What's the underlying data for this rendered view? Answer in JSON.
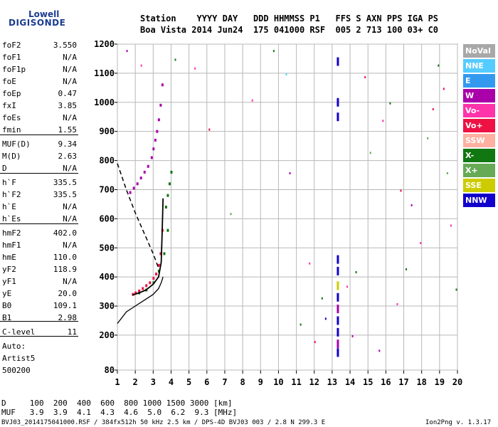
{
  "logo": {
    "line1": "Lowell",
    "line2": "DIGISONDE"
  },
  "header": {
    "row1": "Station    YYYY DAY   DDD HHMMSS P1   FFS S AXN PPS IGA PS",
    "row2": "Boa Vista 2014 Jun24  175 041000 RSF  005 2 713 100 03+ C0"
  },
  "params": [
    {
      "name": "foF2",
      "value": "3.550"
    },
    {
      "name": "foF1",
      "value": "N/A"
    },
    {
      "name": "foF1p",
      "value": "N/A"
    },
    {
      "name": "foE",
      "value": "N/A"
    },
    {
      "name": "foEp",
      "value": "0.47"
    },
    {
      "name": "fxI",
      "value": "3.85"
    },
    {
      "name": "foEs",
      "value": "N/A"
    },
    {
      "name": "fmin",
      "value": "1.55"
    },
    {
      "name": "MUF(D)",
      "value": "9.34"
    },
    {
      "name": "M(D)",
      "value": "2.63"
    },
    {
      "name": "D",
      "value": "N/A"
    },
    {
      "name": "h`F",
      "value": "335.5"
    },
    {
      "name": "h`F2",
      "value": "335.5"
    },
    {
      "name": "h`E",
      "value": "N/A"
    },
    {
      "name": "h`Es",
      "value": "N/A"
    },
    {
      "name": "hmF2",
      "value": "402.0"
    },
    {
      "name": "hmF1",
      "value": "N/A"
    },
    {
      "name": "hmE",
      "value": "110.0"
    },
    {
      "name": "yF2",
      "value": "118.9"
    },
    {
      "name": "yF1",
      "value": "N/A"
    },
    {
      "name": "yE",
      "value": "20.0"
    },
    {
      "name": "B0",
      "value": "109.1"
    },
    {
      "name": "B1",
      "value": "2.98"
    },
    {
      "name": "C-level",
      "value": "11"
    }
  ],
  "auto": {
    "line1": "Auto:",
    "line2": "Artist5",
    "line3": "500200"
  },
  "legend": [
    {
      "label": "NoVal",
      "color": "#a8a8a8"
    },
    {
      "label": "NNE",
      "color": "#55ccff"
    },
    {
      "label": "E",
      "color": "#3399ee"
    },
    {
      "label": "W",
      "color": "#aa00aa"
    },
    {
      "label": "Vo-",
      "color": "#ff33aa"
    },
    {
      "label": "Vo+",
      "color": "#ee1144"
    },
    {
      "label": "SSW",
      "color": "#ffb0a0"
    },
    {
      "label": "X-",
      "color": "#117711"
    },
    {
      "label": "X+",
      "color": "#66aa55"
    },
    {
      "label": "SSE",
      "color": "#cccc00"
    },
    {
      "label": "NNW",
      "color": "#1100cc"
    }
  ],
  "footer": {
    "d_row": "D     100  200  400  600  800 1000 1500 3000 [km]",
    "muf_row": "MUF   3.9  3.9  4.1  4.3  4.6  5.0  6.2  9.3 [MHz]",
    "file_info": "BVJ03_2014175041000.RSF / 384fx512h 50 kHz 2.5 km / DPS-4D BVJ03 003 / 2.8 N 299.3 E",
    "version": "Ion2Png v. 1.3.17"
  },
  "chart_data": {
    "type": "scatter",
    "x_ticks": [
      "1",
      "2",
      "3",
      "4",
      "5",
      "6",
      "7",
      "8",
      "9",
      "10",
      "11",
      "12",
      "13",
      "14",
      "15",
      "16",
      "17",
      "18",
      "19",
      "20"
    ],
    "y_ticks": [
      "80",
      "200",
      "300",
      "400",
      "500",
      "600",
      "700",
      "800",
      "900",
      "1000",
      "1100",
      "1200"
    ],
    "xlim": [
      1,
      20
    ],
    "ylim": [
      80,
      1200
    ],
    "grid": true,
    "trace_o_mode": {
      "x": [
        1.85,
        2.0,
        2.2,
        2.4,
        2.6,
        2.8,
        3.0,
        3.15,
        3.3,
        3.4,
        3.5
      ],
      "y": [
        340,
        345,
        352,
        360,
        370,
        380,
        395,
        410,
        440,
        480,
        560
      ]
    },
    "trace_o_upper": {
      "x": [
        1.7,
        1.9,
        2.1,
        2.3,
        2.5,
        2.7,
        2.9,
        3.0,
        3.1,
        3.2,
        3.3,
        3.4,
        3.5
      ],
      "y": [
        690,
        705,
        720,
        740,
        760,
        780,
        810,
        840,
        870,
        900,
        940,
        990,
        1060
      ]
    },
    "trace_x_upper": {
      "x": [
        3.7,
        3.8,
        3.9,
        4.0
      ],
      "y": [
        640,
        680,
        720,
        760
      ]
    },
    "trace_x_mode": {
      "x": [
        2.2,
        2.6,
        3.0,
        3.3,
        3.6,
        3.8
      ],
      "y": [
        345,
        355,
        380,
        420,
        480,
        560
      ]
    },
    "profile_real": {
      "x": [
        1.0,
        1.5,
        2.0,
        2.5,
        3.0,
        3.3,
        3.45,
        3.55
      ],
      "y": [
        240,
        280,
        300,
        320,
        340,
        360,
        380,
        400
      ]
    },
    "profile_dashed": {
      "x": [
        1.0,
        1.5,
        2.0,
        2.5,
        3.0,
        3.3
      ],
      "y": [
        790,
        700,
        620,
        550,
        480,
        430
      ]
    },
    "profile_virtual": {
      "x": [
        1.85,
        2.2,
        2.6,
        3.0,
        3.3,
        3.45,
        3.5,
        3.55
      ],
      "y": [
        338,
        345,
        355,
        375,
        400,
        450,
        550,
        670
      ]
    },
    "es_column": {
      "x": 13.3,
      "y": [
        140,
        170,
        210,
        250,
        290,
        330,
        370,
        420,
        460,
        950,
        1000,
        1140
      ],
      "colors": [
        "#1100cc",
        "#aa00aa",
        "#1100cc",
        "#1100cc",
        "#aa00aa",
        "#1100cc",
        "#cccc00",
        "#1100cc",
        "#1100cc",
        "#1100cc",
        "#1100cc",
        "#1100cc"
      ]
    },
    "noise": {
      "x": [
        1.5,
        2.3,
        4.2,
        5.3,
        6.1,
        7.3,
        8.5,
        9.7,
        10.4,
        10.6,
        11.2,
        12.0,
        12.6,
        13.8,
        14.3,
        15.1,
        15.8,
        16.2,
        16.8,
        17.4,
        17.9,
        18.3,
        18.9,
        19.2,
        19.6,
        19.9,
        14.1,
        16.6,
        17.1,
        18.6,
        19.4,
        11.7,
        12.4,
        15.6,
        14.8
      ],
      "y": [
        1180,
        1130,
        1150,
        1120,
        910,
        620,
        1010,
        1180,
        1100,
        760,
        240,
        180,
        260,
        370,
        420,
        830,
        940,
        1000,
        700,
        650,
        520,
        880,
        1130,
        1050,
        580,
        360,
        200,
        310,
        430,
        980,
        760,
        450,
        330,
        150,
        1090
      ],
      "colors": [
        "#aa00aa",
        "#ff33aa",
        "#117711",
        "#ff33aa",
        "#ee1144",
        "#66aa55",
        "#ff33aa",
        "#117711",
        "#55ccff",
        "#aa00aa",
        "#117711",
        "#ee1144",
        "#1100cc",
        "#ff33aa",
        "#117711",
        "#66aa55",
        "#ff33aa",
        "#117711",
        "#ee1144",
        "#aa00aa",
        "#ff33aa",
        "#66aa55",
        "#117711",
        "#ee1144",
        "#ff33aa",
        "#117711",
        "#aa00aa",
        "#ff33aa",
        "#117711",
        "#ee1144",
        "#66aa55",
        "#ff33aa",
        "#117711",
        "#aa00aa",
        "#ee1144"
      ]
    }
  }
}
